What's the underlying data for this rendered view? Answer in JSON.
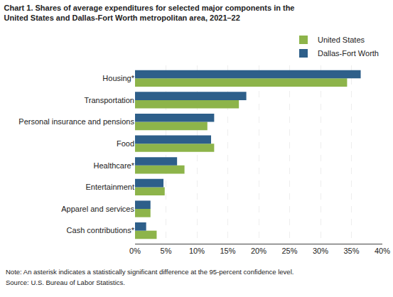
{
  "chart_data": {
    "type": "bar",
    "orientation": "horizontal",
    "title": "Chart 1. Shares of average expenditures for selected major components in the\nUnited States and Dallas-Fort Worth metropolitan area, 2021–22",
    "categories": [
      "Cash contributions*",
      "Apparel and services",
      "Entertainment",
      "Healthcare*",
      "Food",
      "Personal insurance and pensions",
      "Transportation",
      "Housing*"
    ],
    "series": [
      {
        "name": "United States",
        "color": "#8db44a",
        "values": [
          3.5,
          2.5,
          4.8,
          8.0,
          12.8,
          11.7,
          16.8,
          34.3
        ]
      },
      {
        "name": "Dallas-Fort Worth",
        "color": "#2e5f8a",
        "values": [
          1.8,
          2.5,
          4.6,
          6.8,
          12.3,
          12.8,
          18.0,
          36.5
        ]
      }
    ],
    "xlim": [
      0,
      40
    ],
    "xticks": [
      {
        "value": 0,
        "label": "0%"
      },
      {
        "value": 5,
        "label": "5%"
      },
      {
        "value": 10,
        "label": "10%"
      },
      {
        "value": 15,
        "label": "15%"
      },
      {
        "value": 20,
        "label": "20%"
      },
      {
        "value": 25,
        "label": "25%"
      },
      {
        "value": 30,
        "label": "30%"
      },
      {
        "value": 35,
        "label": "35%"
      },
      {
        "value": 40,
        "label": "40%"
      }
    ],
    "grid": true,
    "legend": "top right",
    "annotations": [
      "Note: An asterisk indicates a statistically significant difference at the 95-percent confidence level.",
      "Source: U.S. Bureau of Labor Statistics."
    ]
  }
}
